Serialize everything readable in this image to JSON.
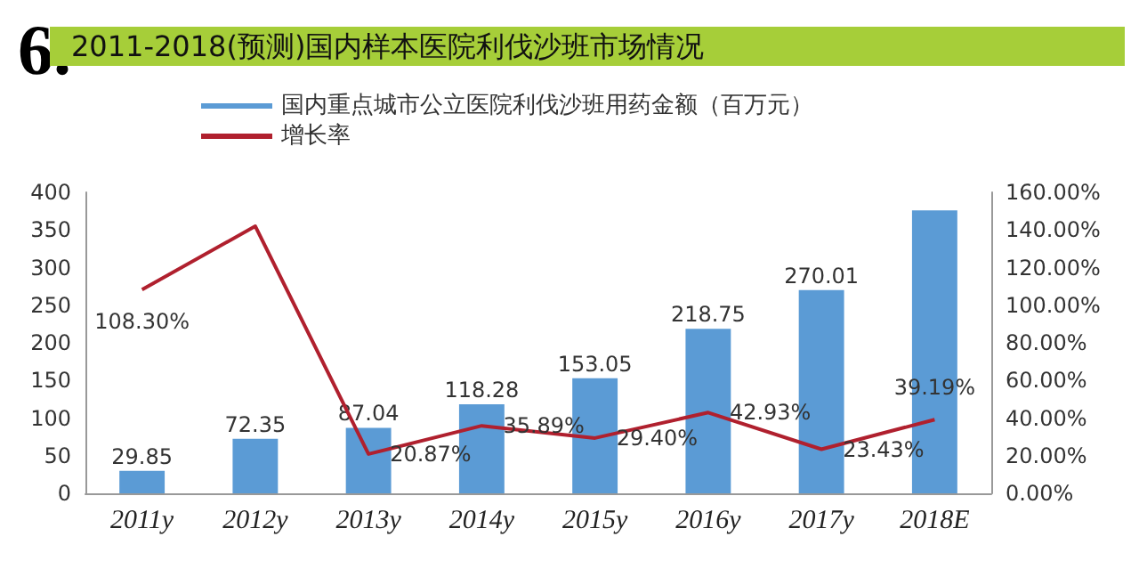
{
  "chart_data": {
    "type": "bar",
    "title": "2011-2018(预测)国内样本医院利伐沙班市场情况",
    "annotations": [
      "6."
    ],
    "categories": [
      "2011y",
      "2012y",
      "2013y",
      "2014y",
      "2015y",
      "2016y",
      "2017y",
      "2018E"
    ],
    "series": [
      {
        "name": "国内重点城市公立医院利伐沙班用药金额（百万元）",
        "color": "#5b9bd5",
        "values": [
          29.85,
          72.35,
          87.04,
          118.28,
          153.05,
          218.75,
          270.01,
          376
        ],
        "value_labels": [
          "29.85",
          "72.35",
          "87.04",
          "118.28",
          "153.05",
          "218.75",
          "270.01",
          null
        ]
      },
      {
        "name": "增长率",
        "type": "line",
        "axis": "y2",
        "color": "#b0202e",
        "values": [
          108.3,
          142,
          20.87,
          35.89,
          29.4,
          42.93,
          23.43,
          39.19
        ],
        "value_labels": [
          "108.30%",
          null,
          "20.87%",
          "35.89%",
          "29.40%",
          "42.93%",
          "23.43%",
          "39.19%"
        ]
      }
    ],
    "ylim": [
      0,
      400
    ],
    "yticks": [
      0,
      50,
      100,
      150,
      200,
      250,
      300,
      350,
      400
    ],
    "y2lim": [
      0,
      160
    ],
    "y2ticks": [
      {
        "value": 0,
        "label": "0.00%"
      },
      {
        "value": 20,
        "label": "20.00%"
      },
      {
        "value": 40,
        "label": "40.00%"
      },
      {
        "value": 60,
        "label": "60.00%"
      },
      {
        "value": 80,
        "label": "80.00%"
      },
      {
        "value": 100,
        "label": "100.00%"
      },
      {
        "value": 120,
        "label": "120.00%"
      },
      {
        "value": 140,
        "label": "140.00%"
      },
      {
        "value": 160,
        "label": "160.00%"
      }
    ],
    "grid": false,
    "legend": "top",
    "marker": "none"
  }
}
